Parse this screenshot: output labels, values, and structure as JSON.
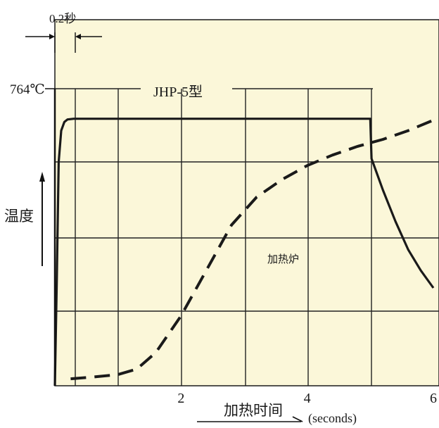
{
  "chart_data": {
    "type": "line",
    "xlabel": "加热时间",
    "x_unit_label": "(seconds)",
    "ylabel": "温度",
    "xlim": [
      0,
      6
    ],
    "ylim": [
      0,
      850
    ],
    "x_ticks": [
      2,
      4,
      6
    ],
    "grid": true,
    "background": "#fbf7d9",
    "line_color": "#1a1a1a",
    "annotations": {
      "interval": "0.2秒",
      "peak": "764℃"
    },
    "series": [
      {
        "name": "JHP-5型",
        "style": "solid",
        "points": [
          [
            0,
            0
          ],
          [
            0.03,
            300
          ],
          [
            0.06,
            640
          ],
          [
            0.1,
            730
          ],
          [
            0.15,
            755
          ],
          [
            0.2,
            762
          ],
          [
            0.3,
            764
          ],
          [
            1,
            764
          ],
          [
            2,
            764
          ],
          [
            3,
            764
          ],
          [
            4,
            764
          ],
          [
            5,
            764
          ],
          [
            5.02,
            650
          ],
          [
            5.2,
            560
          ],
          [
            5.4,
            470
          ],
          [
            5.6,
            390
          ],
          [
            5.8,
            330
          ],
          [
            6,
            280
          ]
        ]
      },
      {
        "name": "加热炉",
        "style": "dashed",
        "points": [
          [
            0.25,
            20
          ],
          [
            0.6,
            25
          ],
          [
            1.0,
            32
          ],
          [
            1.3,
            48
          ],
          [
            1.6,
            95
          ],
          [
            2.0,
            200
          ],
          [
            2.4,
            330
          ],
          [
            2.8,
            460
          ],
          [
            3.2,
            540
          ],
          [
            3.6,
            590
          ],
          [
            4.0,
            630
          ],
          [
            4.4,
            660
          ],
          [
            4.8,
            685
          ],
          [
            5.2,
            705
          ],
          [
            5.6,
            730
          ],
          [
            6.0,
            760
          ]
        ]
      }
    ]
  }
}
